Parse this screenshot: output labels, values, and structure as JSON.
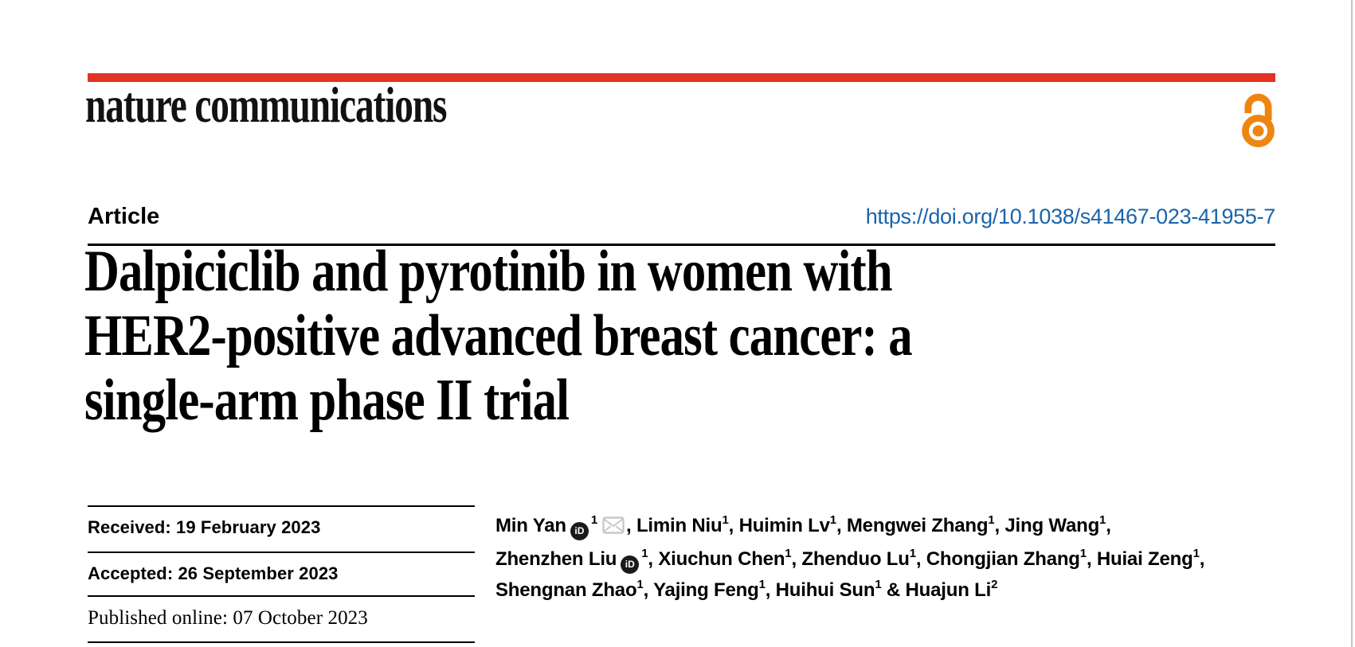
{
  "masthead": {
    "journal_name": "nature communications",
    "open_access_icon": "open-access-padlock"
  },
  "header": {
    "article_type": "Article",
    "doi_link": "https://doi.org/10.1038/s41467-023-41955-7"
  },
  "title_full": "Dalpiciclib and pyrotinib in women with HER2-positive advanced breast cancer: a single-arm phase II trial",
  "title_lines": [
    "Dalpiciclib and pyrotinib in women with",
    "HER2-positive advanced breast cancer: a",
    "single-arm phase II trial"
  ],
  "dates": [
    {
      "text": "Received: 19 February 2023"
    },
    {
      "text": "Accepted: 26 September 2023"
    },
    {
      "text": "Published online: 07 October 2023"
    }
  ],
  "author_lines": [
    [
      {
        "name": "Min Yan",
        "orcid": true,
        "sup": "1",
        "email": true,
        "tail": ", "
      },
      {
        "name": "Limin Niu",
        "sup": "1",
        "tail": ", "
      },
      {
        "name": "Huimin Lv",
        "sup": "1",
        "tail": ", "
      },
      {
        "name": "Mengwei Zhang",
        "sup": "1",
        "tail": ", "
      },
      {
        "name": "Jing Wang",
        "sup": "1",
        "tail": ","
      }
    ],
    [
      {
        "name": "Zhenzhen Liu",
        "orcid": true,
        "sup": "1",
        "tail": ", "
      },
      {
        "name": "Xiuchun Chen",
        "sup": "1",
        "tail": ", "
      },
      {
        "name": "Zhenduo Lu",
        "sup": "1",
        "tail": ", "
      },
      {
        "name": "Chongjian Zhang",
        "sup": "1",
        "tail": ", "
      },
      {
        "name": "Huiai Zeng",
        "sup": "1",
        "tail": ","
      }
    ],
    [
      {
        "name": "Shengnan Zhao",
        "sup": "1",
        "tail": ", "
      },
      {
        "name": "Yajing Feng",
        "sup": "1",
        "tail": ", "
      },
      {
        "name": "Huihui Sun",
        "sup": "1",
        "tail": " & "
      },
      {
        "name": "Huajun Li",
        "sup": "2",
        "tail": ""
      }
    ]
  ],
  "icons": {
    "orcid_label": "iD"
  },
  "colors": {
    "brand_red": "#E23323",
    "link_blue": "#1A64AA",
    "open_access_orange": "#EE8511",
    "text_black": "#000000",
    "envelope_gray": "#C9C9C9",
    "page_edge_gray": "#C4C4C4"
  }
}
